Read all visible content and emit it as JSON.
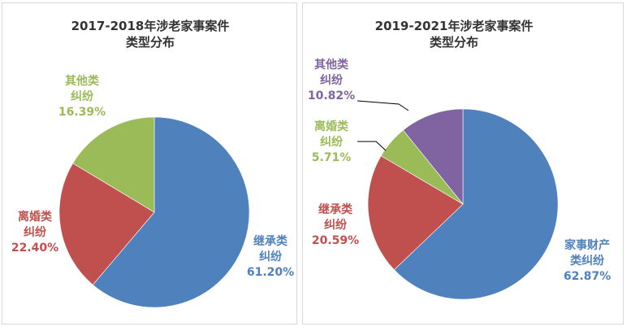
{
  "chart_data": [
    {
      "type": "pie",
      "title_lines": [
        "2017-2018年涉老家事案件",
        "类型分布"
      ],
      "slices": [
        {
          "name_lines": [
            "继承类",
            "纠纷"
          ],
          "value": 61.2,
          "pct_label": "61.20%",
          "color": "#4f81bd",
          "label_color": "#4f81bd"
        },
        {
          "name_lines": [
            "离婚类",
            "纠纷"
          ],
          "value": 22.4,
          "pct_label": "22.40%",
          "color": "#c0504d",
          "label_color": "#c0504d"
        },
        {
          "name_lines": [
            "其他类",
            "纠纷"
          ],
          "value": 16.39,
          "pct_label": "16.39%",
          "color": "#9bbb59",
          "label_color": "#9bbb59"
        }
      ]
    },
    {
      "type": "pie",
      "title_lines": [
        "2019-2021年涉老家事案件",
        "类型分布"
      ],
      "slices": [
        {
          "name_lines": [
            "家事财产",
            "类纠纷"
          ],
          "value": 62.87,
          "pct_label": "62.87%",
          "color": "#4f81bd",
          "label_color": "#4f81bd"
        },
        {
          "name_lines": [
            "继承类",
            "纠纷"
          ],
          "value": 20.59,
          "pct_label": "20.59%",
          "color": "#c0504d",
          "label_color": "#c0504d"
        },
        {
          "name_lines": [
            "离婚类",
            "纠纷"
          ],
          "value": 5.71,
          "pct_label": "5.71%",
          "color": "#9bbb59",
          "label_color": "#9bbb59"
        },
        {
          "name_lines": [
            "其他类",
            "纠纷"
          ],
          "value": 10.82,
          "pct_label": "10.82%",
          "color": "#8064a2",
          "label_color": "#8064a2"
        }
      ]
    }
  ]
}
